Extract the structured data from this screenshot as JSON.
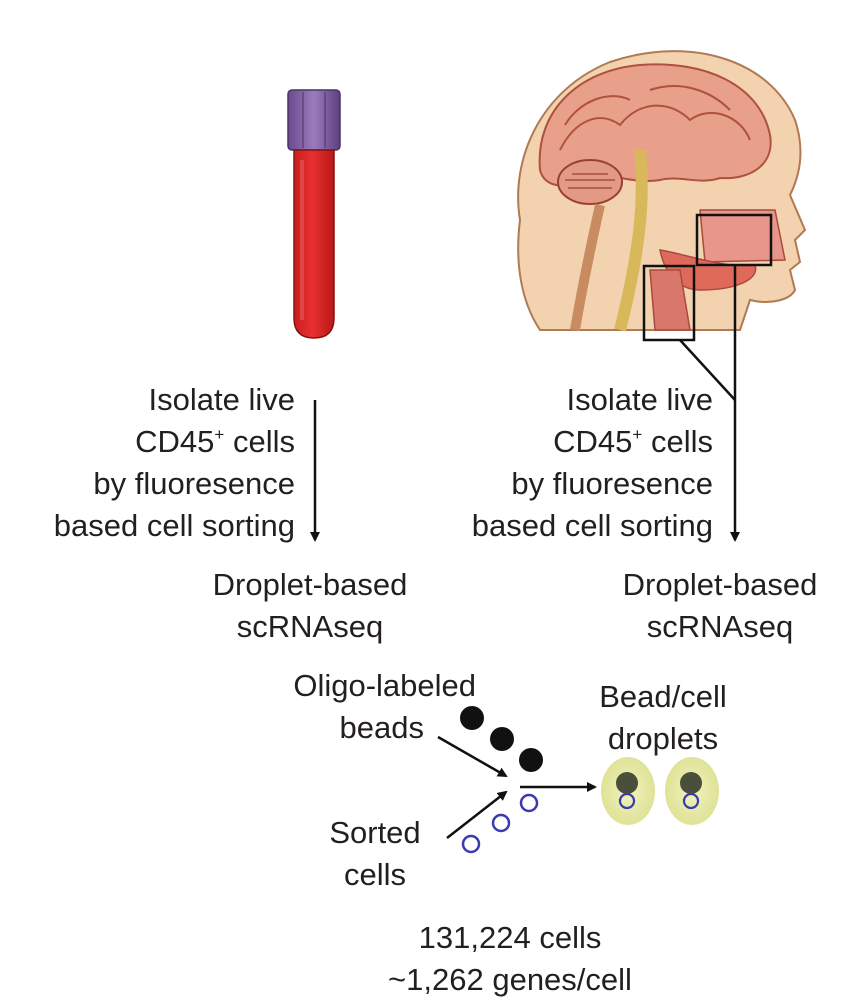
{
  "blood_branch": {
    "sort_lines": [
      "Isolate live",
      "CD45",
      "cells",
      "by fluoresence",
      "based cell sorting"
    ],
    "sup_mark": "+",
    "method_lines": [
      "Droplet-based",
      "scRNAseq"
    ]
  },
  "tissue_branch": {
    "sort_lines": [
      "Isolate live",
      "CD45",
      "cells",
      "by fluoresence",
      "based cell sorting"
    ],
    "sup_mark": "+",
    "method_lines": [
      "Droplet-based",
      "scRNAseq"
    ]
  },
  "droplet_process": {
    "beads_label": [
      "Oligo-labeled",
      "beads"
    ],
    "cells_label": [
      "Sorted",
      "cells"
    ],
    "droplets_label": [
      "Bead/cell",
      "droplets"
    ]
  },
  "summary": {
    "cell_count": "131,224 cells",
    "genes_per_cell": "~1,262 genes/cell"
  },
  "colors": {
    "tube_cap": "#7b5a9c",
    "tube_blood": "#d92525",
    "bead": "#111111",
    "cell_outline": "#3b3ab0",
    "droplet": "#e8eaa4",
    "droplet_bead": "#4a4f3c"
  }
}
